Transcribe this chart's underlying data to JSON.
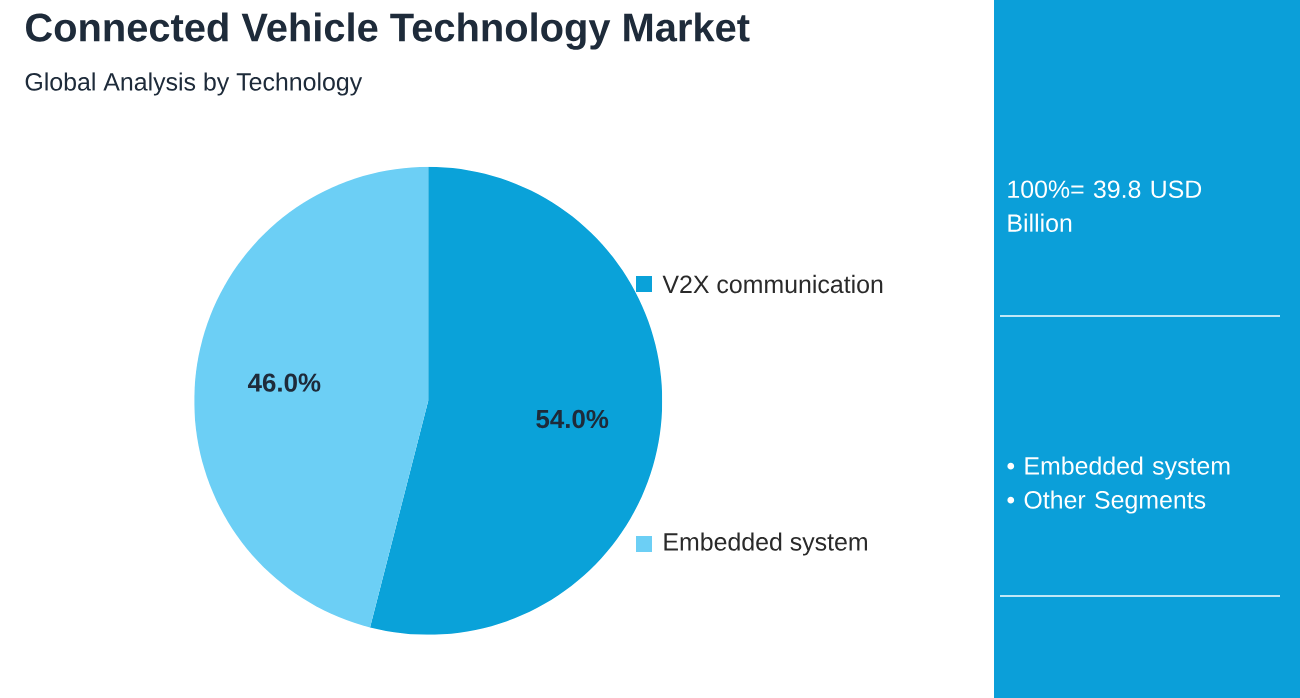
{
  "chart_data": {
    "type": "pie",
    "title": "Connected Vehicle Technology Market",
    "subtitle": "Global Analysis by Technology",
    "categories": [
      "V2X communication",
      "Embedded system"
    ],
    "values": [
      54.0,
      46.0
    ],
    "value_labels": [
      "54.0%",
      "46.0%"
    ],
    "colors": [
      "#0aa2d9",
      "#6ccff5"
    ],
    "legend": "right",
    "annotations": [
      "100%= 39.8 USD Billion",
      "• Embedded system",
      "• Other Segments"
    ]
  }
}
